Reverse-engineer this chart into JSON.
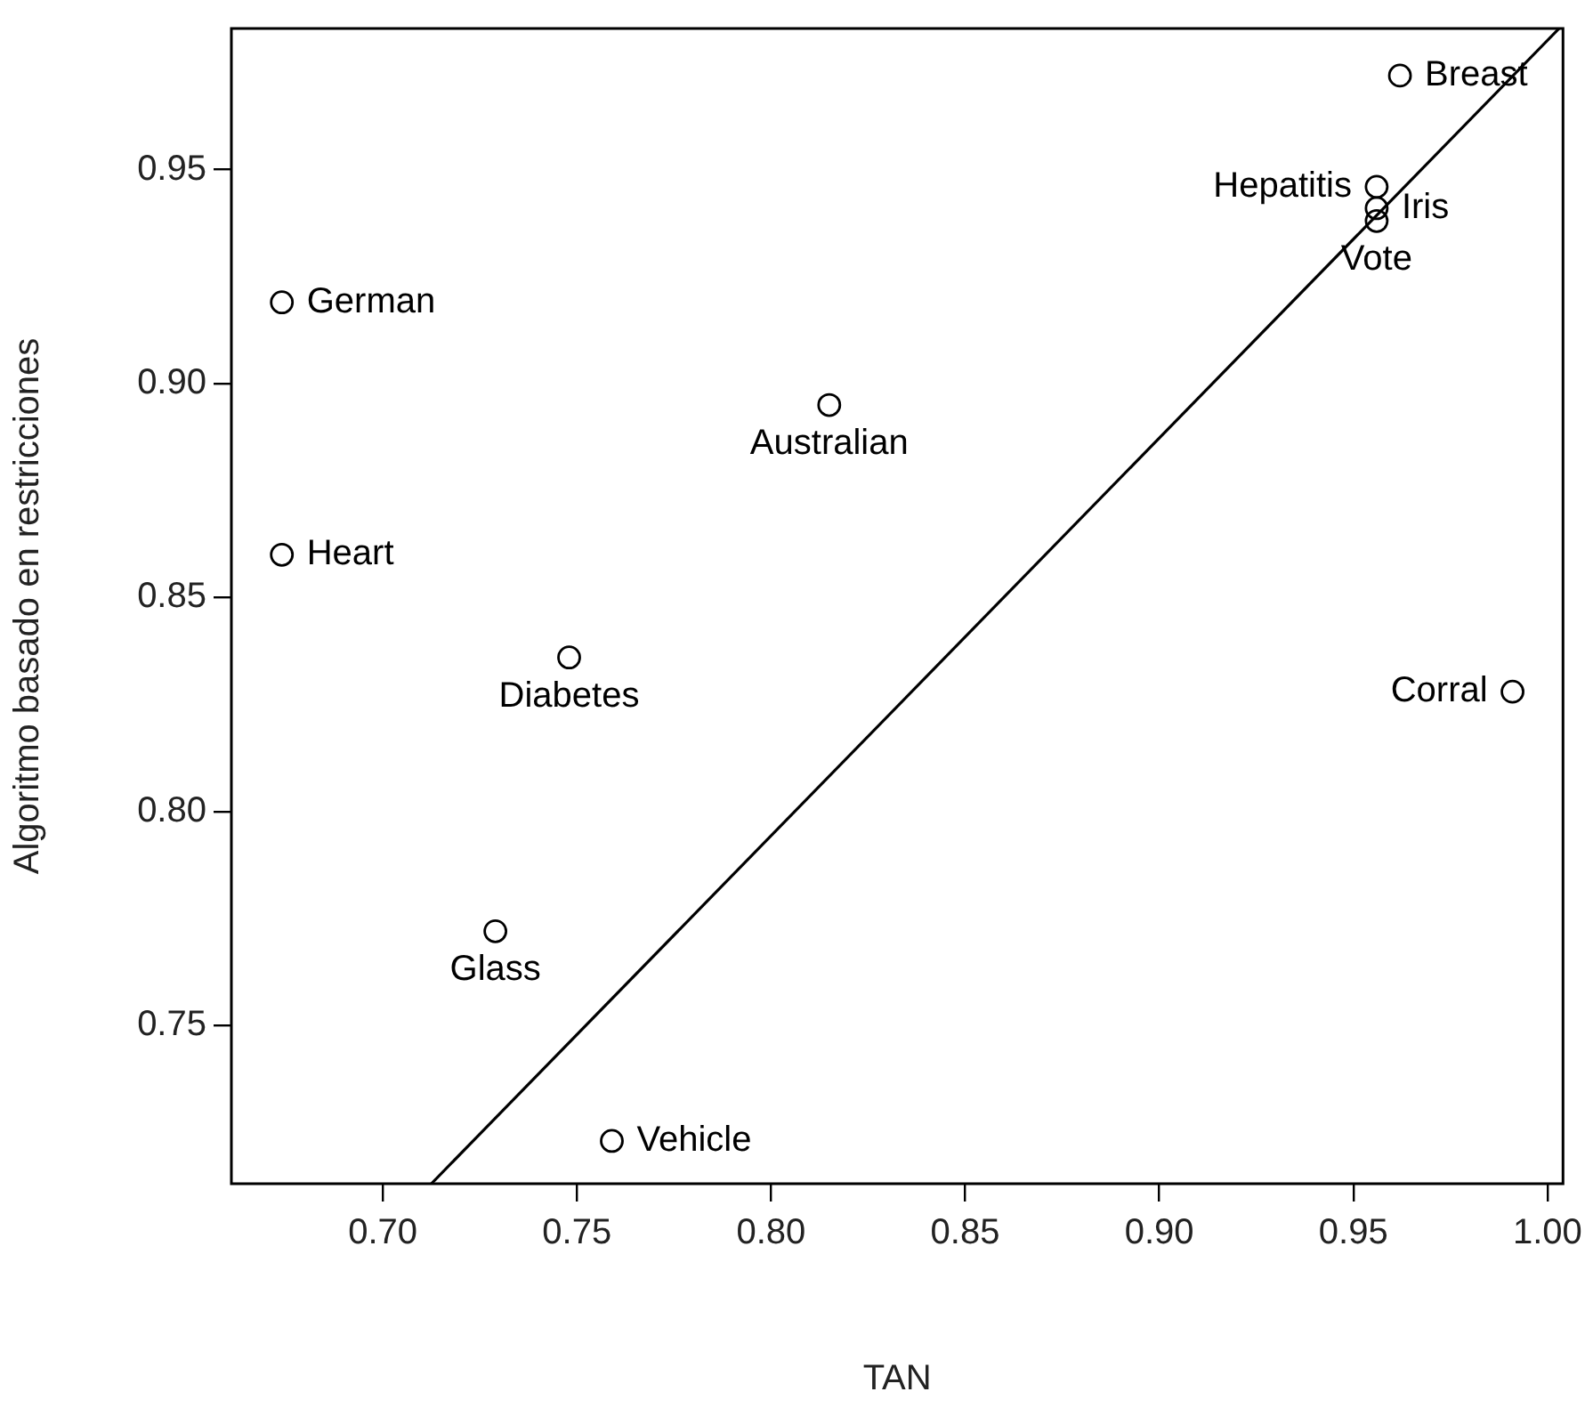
{
  "chart_data": {
    "type": "scatter",
    "xlabel": "TAN",
    "ylabel": "Algoritmo basado en restricciones",
    "xlim": [
      0.661,
      1.004
    ],
    "ylim": [
      0.713,
      0.983
    ],
    "xticks": [
      {
        "value": 0.7,
        "label": "0.70"
      },
      {
        "value": 0.75,
        "label": "0.75"
      },
      {
        "value": 0.8,
        "label": "0.80"
      },
      {
        "value": 0.85,
        "label": "0.85"
      },
      {
        "value": 0.9,
        "label": "0.90"
      },
      {
        "value": 0.95,
        "label": "0.95"
      },
      {
        "value": 1.0,
        "label": "1.00"
      }
    ],
    "yticks": [
      {
        "value": 0.75,
        "label": "0.75"
      },
      {
        "value": 0.8,
        "label": "0.80"
      },
      {
        "value": 0.85,
        "label": "0.85"
      },
      {
        "value": 0.9,
        "label": "0.90"
      },
      {
        "value": 0.95,
        "label": "0.95"
      }
    ],
    "grid": false,
    "legend": false,
    "series": [
      {
        "color": "#000000",
        "marker": "circle",
        "x": [
          0.674,
          0.674,
          0.748,
          0.729,
          0.759,
          0.815,
          0.962,
          0.956,
          0.956,
          0.956,
          0.991
        ],
        "values": [
          0.919,
          0.86,
          0.836,
          0.772,
          0.723,
          0.895,
          0.972,
          0.946,
          0.941,
          0.938,
          0.828
        ]
      },
      {
        "type": "line",
        "marker": "none",
        "color": "#000000",
        "x": [
          0.7125,
          1.003
        ],
        "values": [
          0.713,
          0.983
        ]
      }
    ],
    "annotations": [
      {
        "text": "German",
        "x": 0.674,
        "y": 0.919
      },
      {
        "text": "Heart",
        "x": 0.674,
        "y": 0.86
      },
      {
        "text": "Diabetes",
        "x": 0.748,
        "y": 0.836
      },
      {
        "text": "Glass",
        "x": 0.729,
        "y": 0.772
      },
      {
        "text": "Vehicle",
        "x": 0.759,
        "y": 0.723
      },
      {
        "text": "Australian",
        "x": 0.815,
        "y": 0.895
      },
      {
        "text": "Breast",
        "x": 0.962,
        "y": 0.972
      },
      {
        "text": "Hepatitis",
        "x": 0.956,
        "y": 0.946
      },
      {
        "text": "Iris",
        "x": 0.956,
        "y": 0.941
      },
      {
        "text": "Vote",
        "x": 0.956,
        "y": 0.938
      },
      {
        "text": "Corral",
        "x": 0.991,
        "y": 0.828
      }
    ]
  }
}
